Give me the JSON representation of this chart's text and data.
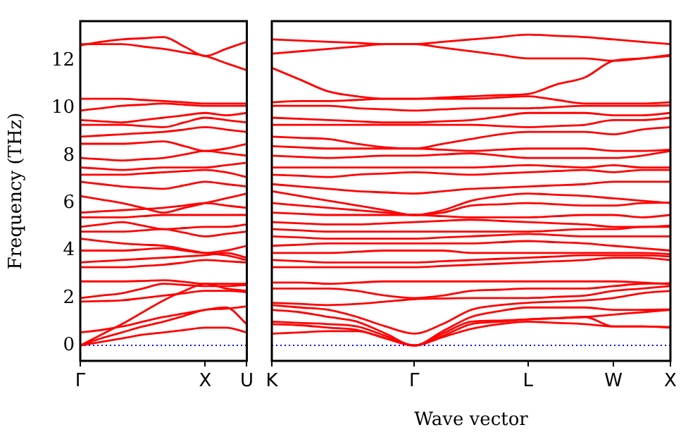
{
  "chart_data": [
    {
      "type": "line",
      "ylabel": "Frequency (THz)",
      "ylim": [
        -0.65,
        13.67
      ],
      "categories": [
        "Γ",
        null,
        null,
        null,
        null,
        null,
        "X",
        null,
        "U"
      ],
      "yticks": [
        0,
        2,
        4,
        6,
        8,
        10,
        12
      ],
      "grid": false,
      "legend": false,
      "marker": "none",
      "line_style": "solid",
      "ref_lines": [
        {
          "axis": "y",
          "value": 0,
          "color": "#0000ff",
          "line_style": "dotted"
        }
      ],
      "series": [
        {
          "color": "#ff0000",
          "values": [
            0,
            0.15,
            0.3,
            0.45,
            0.55,
            0.65,
            0.75,
            0.75,
            0.55
          ]
        },
        {
          "color": "#ff0000",
          "values": [
            0,
            0.3,
            0.55,
            0.8,
            1.0,
            1.25,
            1.5,
            1.55,
            1.65
          ]
        },
        {
          "color": "#ff0000",
          "values": [
            0,
            0.45,
            0.9,
            1.4,
            1.9,
            2.3,
            2.6,
            2.4,
            2.3
          ]
        },
        {
          "color": "#ff0000",
          "values": [
            0.55,
            0.65,
            0.8,
            1.0,
            1.2,
            1.35,
            1.5,
            1.6,
            0.9
          ]
        },
        {
          "color": "#ff0000",
          "values": [
            1.85,
            1.87,
            1.9,
            2.0,
            2.1,
            2.2,
            2.3,
            2.3,
            2.25
          ]
        },
        {
          "color": "#ff0000",
          "values": [
            2.0,
            2.1,
            2.2,
            2.4,
            2.6,
            2.55,
            2.5,
            2.5,
            2.55
          ]
        },
        {
          "color": "#ff0000",
          "values": [
            2.7,
            2.7,
            2.7,
            2.72,
            2.75,
            2.68,
            2.6,
            2.6,
            2.6
          ]
        },
        {
          "color": "#ff0000",
          "values": [
            3.3,
            3.3,
            3.3,
            3.35,
            3.4,
            3.5,
            3.6,
            3.55,
            3.5
          ]
        },
        {
          "color": "#ff0000",
          "values": [
            3.5,
            3.55,
            3.6,
            3.65,
            3.7,
            3.75,
            3.8,
            3.9,
            3.7
          ]
        },
        {
          "color": "#ff0000",
          "values": [
            4.0,
            4.0,
            4.0,
            4.05,
            4.1,
            4.0,
            3.9,
            4.0,
            4.2
          ]
        },
        {
          "color": "#ff0000",
          "values": [
            4.5,
            4.4,
            4.3,
            4.25,
            4.2,
            4.05,
            3.9,
            3.8,
            3.6
          ]
        },
        {
          "color": "#ff0000",
          "values": [
            4.8,
            4.8,
            4.8,
            4.85,
            4.9,
            4.75,
            4.6,
            4.7,
            4.8
          ]
        },
        {
          "color": "#ff0000",
          "values": [
            5.0,
            5.1,
            5.2,
            5.05,
            4.9,
            4.95,
            5.0,
            5.0,
            5.1
          ]
        },
        {
          "color": "#ff0000",
          "values": [
            5.4,
            5.4,
            5.4,
            5.45,
            5.5,
            5.5,
            5.5,
            5.5,
            5.5
          ]
        },
        {
          "color": "#ff0000",
          "values": [
            5.6,
            5.65,
            5.7,
            5.75,
            5.8,
            5.9,
            6.0,
            5.9,
            5.8
          ]
        },
        {
          "color": "#ff0000",
          "values": [
            6.3,
            6.15,
            6.0,
            5.8,
            5.6,
            5.8,
            6.0,
            6.2,
            6.4
          ]
        },
        {
          "color": "#ff0000",
          "values": [
            6.9,
            6.8,
            6.7,
            6.65,
            6.6,
            6.75,
            6.9,
            6.8,
            6.7
          ]
        },
        {
          "color": "#ff0000",
          "values": [
            7.2,
            7.2,
            7.2,
            7.25,
            7.3,
            7.35,
            7.4,
            7.3,
            7.1
          ]
        },
        {
          "color": "#ff0000",
          "values": [
            7.5,
            7.45,
            7.4,
            7.45,
            7.5,
            7.5,
            7.5,
            7.6,
            7.7
          ]
        },
        {
          "color": "#ff0000",
          "values": [
            7.9,
            7.85,
            7.8,
            7.85,
            7.9,
            8.05,
            8.2,
            8.1,
            8.0
          ]
        },
        {
          "color": "#ff0000",
          "values": [
            8.5,
            8.5,
            8.5,
            8.55,
            8.6,
            8.4,
            8.2,
            8.3,
            8.5
          ]
        },
        {
          "color": "#ff0000",
          "values": [
            8.8,
            8.85,
            8.9,
            8.95,
            9.0,
            9.1,
            9.2,
            9.1,
            9.0
          ]
        },
        {
          "color": "#ff0000",
          "values": [
            9.3,
            9.3,
            9.3,
            9.25,
            9.2,
            9.4,
            9.6,
            9.5,
            9.4
          ]
        },
        {
          "color": "#ff0000",
          "values": [
            9.5,
            9.45,
            9.4,
            9.5,
            9.6,
            9.7,
            9.8,
            9.7,
            9.8
          ]
        },
        {
          "color": "#ff0000",
          "values": [
            9.9,
            10.0,
            10.1,
            10.15,
            10.2,
            10.15,
            10.1,
            10.1,
            10.1
          ]
        },
        {
          "color": "#ff0000",
          "values": [
            10.4,
            10.4,
            10.4,
            10.35,
            10.3,
            10.25,
            10.2,
            10.2,
            10.2
          ]
        },
        {
          "color": "#ff0000",
          "values": [
            12.7,
            12.7,
            12.7,
            12.6,
            12.5,
            12.35,
            12.2,
            11.9,
            11.6
          ]
        },
        {
          "color": "#ff0000",
          "values": [
            12.65,
            12.8,
            12.9,
            12.95,
            13.0,
            12.6,
            12.2,
            12.5,
            12.8
          ]
        }
      ]
    },
    {
      "type": "line",
      "xlabel": "Wave vector",
      "ylim": [
        -0.65,
        13.67
      ],
      "categories": [
        "K",
        null,
        null,
        null,
        null,
        "Γ",
        null,
        null,
        null,
        "L",
        null,
        null,
        "W",
        null,
        "X"
      ],
      "yticks": [
        0,
        2,
        4,
        6,
        8,
        10,
        12
      ],
      "tick_labels": "x",
      "grid": false,
      "legend": false,
      "marker": "none",
      "line_style": "solid",
      "ref_lines": [
        {
          "axis": "y",
          "value": 0,
          "color": "#0000ff",
          "line_style": "dotted"
        }
      ],
      "series": [
        {
          "color": "#ff0000",
          "values": [
            0.5,
            0.55,
            0.6,
            0.6,
            0.3,
            0,
            0.35,
            0.7,
            0.9,
            1.0,
            0.95,
            0.9,
            0.8,
            0.8,
            0.75
          ]
        },
        {
          "color": "#ff0000",
          "values": [
            0.9,
            0.85,
            0.75,
            0.65,
            0.3,
            0,
            0.4,
            0.9,
            1.0,
            1.1,
            1.15,
            1.2,
            0.8,
            0.8,
            0.78
          ]
        },
        {
          "color": "#ff0000",
          "values": [
            1.0,
            0.95,
            0.9,
            0.8,
            0.4,
            0,
            0.5,
            1.0,
            1.05,
            1.1,
            1.15,
            1.2,
            1.3,
            1.4,
            1.5
          ]
        },
        {
          "color": "#ff0000",
          "values": [
            1.5,
            1.4,
            1.2,
            1.0,
            0.5,
            0,
            0.6,
            1.2,
            1.45,
            1.6,
            1.6,
            1.6,
            1.5,
            1.5,
            1.52
          ]
        },
        {
          "color": "#ff0000",
          "values": [
            1.7,
            1.6,
            1.5,
            1.2,
            0.8,
            0.5,
            0.9,
            1.5,
            1.7,
            1.8,
            1.85,
            1.9,
            2.0,
            2.2,
            2.3
          ]
        },
        {
          "color": "#ff0000",
          "values": [
            1.8,
            1.75,
            1.7,
            1.75,
            1.85,
            1.95,
            1.98,
            2.0,
            2.0,
            2.0,
            2.05,
            2.1,
            2.3,
            2.4,
            2.5
          ]
        },
        {
          "color": "#ff0000",
          "values": [
            2.4,
            2.4,
            2.4,
            2.3,
            2.1,
            2.0,
            2.1,
            2.3,
            2.35,
            2.4,
            2.4,
            2.4,
            2.5,
            2.6,
            2.62
          ]
        },
        {
          "color": "#ff0000",
          "values": [
            2.65,
            2.65,
            2.6,
            2.65,
            2.7,
            2.7,
            2.7,
            2.7,
            2.7,
            2.7,
            2.7,
            2.7,
            2.7,
            2.65,
            2.58
          ]
        },
        {
          "color": "#ff0000",
          "values": [
            3.3,
            3.3,
            3.3,
            3.3,
            3.3,
            3.3,
            3.35,
            3.4,
            3.45,
            3.5,
            3.55,
            3.6,
            3.7,
            3.7,
            3.6
          ]
        },
        {
          "color": "#ff0000",
          "values": [
            3.6,
            3.55,
            3.5,
            3.5,
            3.5,
            3.5,
            3.55,
            3.6,
            3.65,
            3.7,
            3.75,
            3.8,
            3.8,
            3.8,
            3.75
          ]
        },
        {
          "color": "#ff0000",
          "values": [
            3.9,
            3.9,
            3.9,
            3.95,
            4.0,
            4.0,
            4.0,
            3.9,
            3.9,
            3.9,
            3.9,
            3.9,
            3.9,
            3.9,
            3.85
          ]
        },
        {
          "color": "#ff0000",
          "values": [
            4.2,
            4.25,
            4.3,
            4.3,
            4.3,
            4.3,
            4.3,
            4.3,
            4.35,
            4.4,
            4.35,
            4.3,
            4.2,
            4.1,
            4.0
          ]
        },
        {
          "color": "#ff0000",
          "values": [
            4.6,
            4.55,
            4.5,
            4.5,
            4.5,
            4.5,
            4.55,
            4.6,
            4.65,
            4.7,
            4.65,
            4.6,
            4.6,
            4.6,
            4.6
          ]
        },
        {
          "color": "#ff0000",
          "values": [
            4.9,
            4.85,
            4.8,
            4.8,
            4.8,
            4.8,
            4.8,
            4.8,
            4.8,
            4.8,
            4.85,
            4.9,
            4.9,
            5.0,
            5.0
          ]
        },
        {
          "color": "#ff0000",
          "values": [
            5.2,
            5.15,
            5.1,
            5.1,
            5.15,
            5.2,
            5.25,
            5.3,
            5.25,
            5.2,
            5.15,
            5.1,
            5.0,
            5.0,
            5.05
          ]
        },
        {
          "color": "#ff0000",
          "values": [
            5.6,
            5.55,
            5.5,
            5.5,
            5.5,
            5.5,
            5.45,
            5.4,
            5.4,
            5.4,
            5.45,
            5.5,
            5.5,
            5.4,
            5.5
          ]
        },
        {
          "color": "#ff0000",
          "values": [
            6.0,
            5.9,
            5.8,
            5.7,
            5.6,
            5.5,
            5.6,
            5.9,
            5.95,
            6.0,
            5.95,
            5.9,
            5.9,
            6.0,
            6.02
          ]
        },
        {
          "color": "#ff0000",
          "values": [
            6.5,
            6.3,
            6.1,
            5.9,
            5.7,
            5.5,
            5.7,
            6.1,
            6.3,
            6.4,
            6.35,
            6.3,
            6.2,
            6.1,
            6.0
          ]
        },
        {
          "color": "#ff0000",
          "values": [
            6.8,
            6.7,
            6.6,
            6.5,
            6.45,
            6.4,
            6.5,
            6.6,
            6.65,
            6.7,
            6.75,
            6.8,
            6.9,
            6.9,
            6.9
          ]
        },
        {
          "color": "#ff0000",
          "values": [
            7.2,
            7.15,
            7.1,
            7.2,
            7.25,
            7.3,
            7.25,
            7.2,
            7.25,
            7.3,
            7.35,
            7.4,
            7.3,
            7.4,
            7.4
          ]
        },
        {
          "color": "#ff0000",
          "values": [
            7.5,
            7.5,
            7.5,
            7.5,
            7.5,
            7.5,
            7.5,
            7.5,
            7.55,
            7.6,
            7.55,
            7.5,
            7.6,
            7.5,
            7.5
          ]
        },
        {
          "color": "#ff0000",
          "values": [
            8.0,
            7.95,
            7.9,
            7.95,
            8.0,
            8.0,
            8.05,
            8.1,
            8.0,
            7.9,
            7.9,
            7.9,
            7.9,
            8.0,
            8.2
          ]
        },
        {
          "color": "#ff0000",
          "values": [
            8.4,
            8.35,
            8.3,
            8.3,
            8.3,
            8.3,
            8.25,
            8.2,
            8.25,
            8.3,
            8.3,
            8.3,
            8.2,
            8.2,
            8.25
          ]
        },
        {
          "color": "#ff0000",
          "values": [
            8.8,
            8.75,
            8.7,
            8.5,
            8.35,
            8.3,
            8.5,
            8.7,
            8.9,
            9.0,
            9.0,
            9.0,
            8.9,
            9.1,
            9.2
          ]
        },
        {
          "color": "#ff0000",
          "values": [
            9.3,
            9.3,
            9.3,
            9.3,
            9.3,
            9.3,
            9.3,
            9.3,
            9.25,
            9.2,
            9.25,
            9.3,
            9.5,
            9.5,
            9.6
          ]
        },
        {
          "color": "#ff0000",
          "values": [
            9.6,
            9.55,
            9.5,
            9.45,
            9.4,
            9.4,
            9.45,
            9.5,
            9.65,
            9.8,
            9.8,
            9.8,
            9.7,
            9.7,
            9.8
          ]
        },
        {
          "color": "#ff0000",
          "values": [
            10.1,
            10.1,
            10.1,
            10.0,
            9.95,
            9.9,
            9.95,
            10.0,
            10.0,
            10.0,
            10.05,
            10.1,
            10.1,
            10.1,
            10.12
          ]
        },
        {
          "color": "#ff0000",
          "values": [
            10.25,
            10.3,
            10.3,
            10.35,
            10.4,
            10.4,
            10.4,
            10.4,
            10.45,
            10.5,
            10.35,
            10.2,
            10.2,
            10.2,
            10.25
          ]
        },
        {
          "color": "#ff0000",
          "values": [
            11.7,
            11.2,
            10.7,
            10.5,
            10.4,
            10.4,
            10.45,
            10.5,
            10.55,
            10.6,
            11.0,
            11.3,
            12.0,
            12.1,
            12.2
          ]
        },
        {
          "color": "#ff0000",
          "values": [
            12.3,
            12.4,
            12.5,
            12.6,
            12.7,
            12.7,
            12.55,
            12.4,
            12.25,
            12.1,
            12.1,
            12.1,
            12.0,
            12.1,
            12.25
          ]
        },
        {
          "color": "#ff0000",
          "values": [
            12.9,
            12.85,
            12.8,
            12.75,
            12.7,
            12.7,
            12.8,
            12.9,
            13.0,
            13.1,
            13.05,
            13.0,
            12.9,
            12.8,
            12.7
          ]
        }
      ]
    }
  ]
}
